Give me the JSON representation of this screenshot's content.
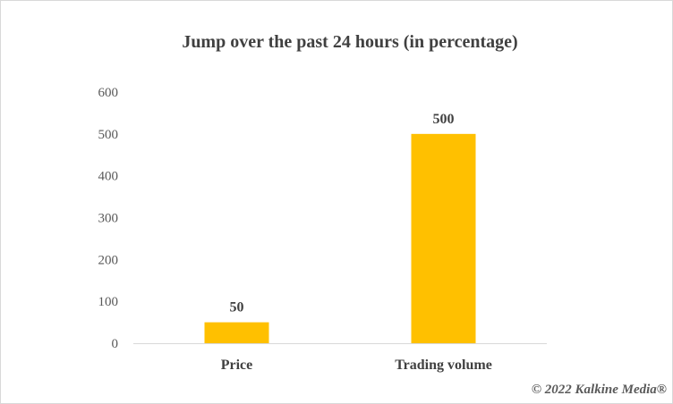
{
  "chart_data": {
    "type": "bar",
    "title": "Jump over the past 24 hours (in percentage)",
    "categories": [
      "Price",
      "Trading volume"
    ],
    "values": [
      50,
      500
    ],
    "data_labels": [
      "50",
      "500"
    ],
    "ylim": [
      0,
      600
    ],
    "y_ticks": [
      0,
      100,
      200,
      300,
      400,
      500,
      600
    ],
    "grid": false,
    "legend": "none",
    "bar_color": "#FFC000",
    "axis_color": "#d9d9d9"
  },
  "watermark": "© 2022 Kalkine Media®"
}
